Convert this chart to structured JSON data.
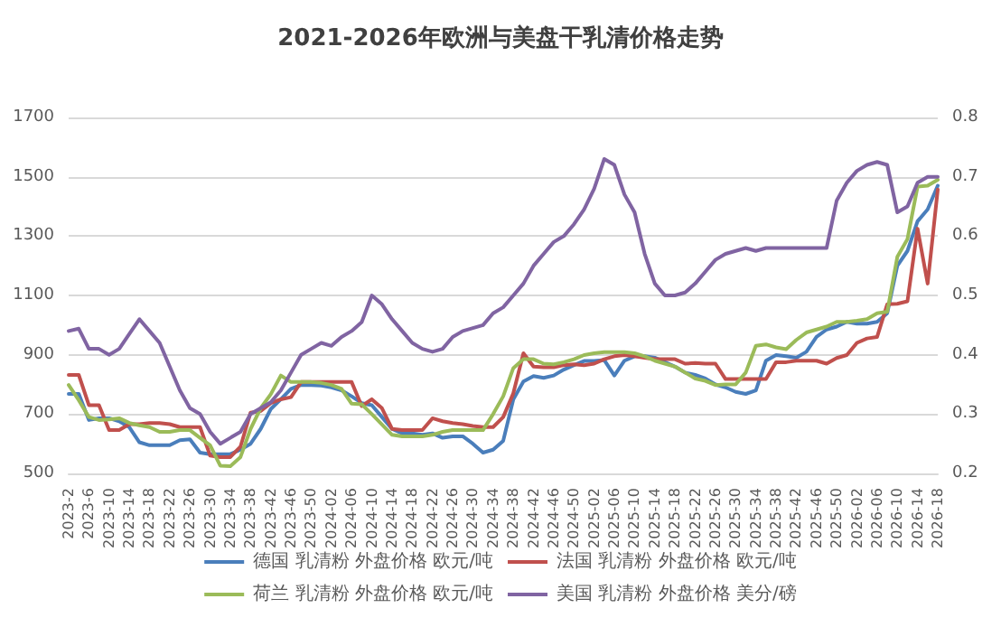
{
  "chart_data": {
    "type": "line",
    "title": "2021-2026年欧洲与美盘干乳清价格走势",
    "categories": [
      "2023-2",
      null,
      "2023-6",
      null,
      "2023-10",
      null,
      "2023-14",
      null,
      "2023-18",
      null,
      "2023-22",
      null,
      "2023-26",
      null,
      "2023-30",
      null,
      "2023-34",
      null,
      "2023-38",
      null,
      "2023-42",
      null,
      "2023-46",
      null,
      "2023-50",
      null,
      "2024-02",
      null,
      "2024-06",
      null,
      "2024-10",
      null,
      "2024-14",
      null,
      "2024-18",
      null,
      "2024-22",
      null,
      "2024-26",
      null,
      "2024-30",
      null,
      "2024-34",
      null,
      "2024-38",
      null,
      "2024-42",
      null,
      "2024-46",
      null,
      "2024-50",
      null,
      "2025-02",
      null,
      "2025-06",
      null,
      "2025-10",
      null,
      "2025-14",
      null,
      "2025-18",
      null,
      "2025-22",
      null,
      "2025-26",
      null,
      "2025-30",
      null,
      "2025-34",
      null,
      "2025-38",
      null,
      "2025-42",
      null,
      "2025-46",
      null,
      "2025-50",
      null,
      "2026-02",
      null,
      "2026-06",
      null,
      "2026-10",
      null,
      "2026-14",
      null,
      "2026-18"
    ],
    "series": [
      {
        "name": "德国 乳清粉 外盘价格 欧元/吨",
        "color": "#4a7ebb",
        "values": [
          768,
          768,
          680,
          686,
          686,
          676,
          656,
          605,
          595,
          595,
          595,
          612,
          615,
          570,
          565,
          565,
          565,
          580,
          600,
          650,
          717,
          750,
          785,
          798,
          798,
          796,
          790,
          780,
          760,
          737,
          730,
          690,
          650,
          635,
          635,
          630,
          635,
          620,
          625,
          625,
          600,
          570,
          580,
          610,
          750,
          810,
          828,
          822,
          830,
          850,
          865,
          879,
          879,
          882,
          830,
          880,
          895,
          895,
          890,
          875,
          860,
          840,
          832,
          820,
          800,
          790,
          775,
          768,
          780,
          880,
          899,
          895,
          890,
          910,
          960,
          985,
          995,
          1011,
          1005,
          1005,
          1011,
          1040,
          1200,
          1250,
          1350,
          1390,
          1470
        ]
      },
      {
        "name": "法国 乳清粉 外盘价格 欧元/吨",
        "color": "#c0504d",
        "values": [
          832,
          832,
          730,
          730,
          646,
          646,
          666,
          666,
          670,
          670,
          666,
          656,
          656,
          656,
          560,
          555,
          555,
          590,
          705,
          710,
          737,
          750,
          757,
          808,
          808,
          808,
          808,
          808,
          808,
          727,
          750,
          720,
          650,
          646,
          646,
          646,
          686,
          676,
          670,
          666,
          660,
          656,
          656,
          690,
          770,
          905,
          860,
          858,
          858,
          865,
          868,
          865,
          870,
          885,
          895,
          899,
          895,
          890,
          885,
          885,
          885,
          870,
          872,
          870,
          870,
          818,
          818,
          818,
          818,
          818,
          875,
          875,
          880,
          880,
          880,
          870,
          889,
          899,
          940,
          955,
          960,
          1070,
          1072,
          1080,
          1325,
          1140,
          1457
        ]
      },
      {
        "name": "荷兰 乳清粉 外盘价格 欧元/吨",
        "color": "#9bbb59",
        "values": [
          798,
          747,
          690,
          680,
          682,
          686,
          670,
          662,
          656,
          640,
          640,
          646,
          646,
          620,
          595,
          526,
          524,
          555,
          650,
          720,
          767,
          830,
          808,
          808,
          808,
          805,
          798,
          785,
          735,
          733,
          700,
          665,
          630,
          625,
          625,
          625,
          630,
          640,
          646,
          646,
          646,
          646,
          700,
          760,
          855,
          885,
          885,
          870,
          868,
          875,
          885,
          899,
          905,
          909,
          909,
          909,
          905,
          895,
          880,
          870,
          860,
          840,
          820,
          812,
          798,
          800,
          800,
          840,
          930,
          935,
          925,
          919,
          950,
          975,
          985,
          995,
          1011,
          1011,
          1015,
          1020,
          1040,
          1045,
          1230,
          1290,
          1467,
          1470,
          1490
        ]
      },
      {
        "name": "美国 乳清粉 外盘价格 美分/磅",
        "color": "#8064a2",
        "axis": "y2",
        "values": [
          0.44,
          0.444,
          0.41,
          0.41,
          0.4,
          0.41,
          0.435,
          0.46,
          0.44,
          0.42,
          0.38,
          0.34,
          0.31,
          0.3,
          0.27,
          0.25,
          0.26,
          0.27,
          0.3,
          0.31,
          0.32,
          0.34,
          0.37,
          0.4,
          0.41,
          0.42,
          0.415,
          0.43,
          0.44,
          0.455,
          0.5,
          0.485,
          0.46,
          0.44,
          0.42,
          0.41,
          0.405,
          0.41,
          0.43,
          0.44,
          0.445,
          0.45,
          0.47,
          0.48,
          0.5,
          0.52,
          0.55,
          0.57,
          0.59,
          0.6,
          0.62,
          0.645,
          0.68,
          0.73,
          0.72,
          0.67,
          0.64,
          0.57,
          0.52,
          0.5,
          0.5,
          0.505,
          0.52,
          0.54,
          0.56,
          0.57,
          0.575,
          0.58,
          0.575,
          0.58,
          0.58,
          0.58,
          0.58,
          0.58,
          0.58,
          0.58,
          0.66,
          0.69,
          0.71,
          0.72,
          0.725,
          0.72,
          0.64,
          0.65,
          0.69,
          0.7,
          0.7
        ]
      }
    ],
    "ylim": [
      500,
      1700
    ],
    "yticks": [
      500,
      700,
      900,
      1100,
      1300,
      1500,
      1700
    ],
    "y2lim": [
      0.2,
      0.8
    ],
    "y2ticks": [
      0.2,
      0.3,
      0.4,
      0.5,
      0.6,
      0.7,
      0.8
    ],
    "grid": "y",
    "legend": "bottom",
    "marker": "none",
    "line_style": "solid"
  }
}
